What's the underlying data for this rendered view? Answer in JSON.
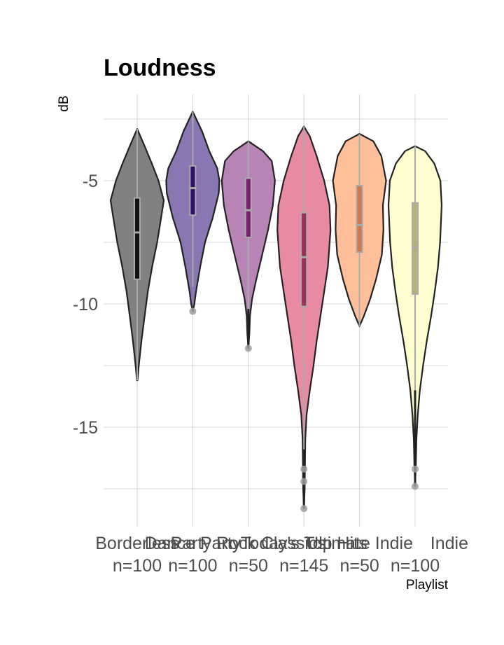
{
  "chart_data": {
    "type": "violin",
    "title": "Loudness",
    "ylabel": "dB",
    "xlabel": "Playlist",
    "ylim": [
      -19.1,
      -1.5
    ],
    "yticks": [
      -5,
      -10,
      -15
    ],
    "ytick_labels": [
      "-5",
      "-10",
      "-15"
    ],
    "grid": true,
    "legend": "none",
    "outline_color": "#222222",
    "box_color": "#aaaaaa",
    "series": [
      {
        "name": "Borderless",
        "n_label": "n=100",
        "fill": "#808080",
        "median_color": "#111111",
        "alpha_fill": "#7d7d7d",
        "min": -13.1,
        "max": -2.9,
        "q1": -9.0,
        "median": -7.1,
        "q3": -5.7,
        "whisker_low": -13.1,
        "whisker_high": -2.9,
        "outliers": [],
        "density": [
          [
            -13.1,
            0.01
          ],
          [
            -12.5,
            0.06
          ],
          [
            -11.5,
            0.16
          ],
          [
            -10.5,
            0.28
          ],
          [
            -9.5,
            0.4
          ],
          [
            -8.5,
            0.56
          ],
          [
            -7.5,
            0.75
          ],
          [
            -6.5,
            0.9
          ],
          [
            -5.8,
            1.0
          ],
          [
            -5.0,
            0.8
          ],
          [
            -4.3,
            0.55
          ],
          [
            -3.6,
            0.28
          ],
          [
            -2.9,
            0.0
          ]
        ]
      },
      {
        "name": "Dance Party",
        "n_label": "n=100",
        "fill": "#8a76b0",
        "median_color": "#2e0f6b",
        "min": -10.3,
        "max": -2.2,
        "q1": -6.4,
        "median": -5.3,
        "q3": -4.4,
        "whisker_low": -9.3,
        "whisker_high": -2.2,
        "outliers": [
          -10.3
        ],
        "density": [
          [
            -10.3,
            0.0
          ],
          [
            -10.0,
            0.06
          ],
          [
            -9.5,
            0.12
          ],
          [
            -8.5,
            0.28
          ],
          [
            -7.5,
            0.46
          ],
          [
            -6.5,
            0.75
          ],
          [
            -5.5,
            0.98
          ],
          [
            -5.0,
            1.0
          ],
          [
            -4.5,
            0.92
          ],
          [
            -3.8,
            0.62
          ],
          [
            -3.0,
            0.35
          ],
          [
            -2.2,
            0.0
          ]
        ]
      },
      {
        "name": "Party Rock Classics",
        "n_label": "n=50",
        "fill": "#b884b6",
        "median_color": "#7a1f6b",
        "min": -11.8,
        "max": -3.4,
        "q1": -7.3,
        "median": -6.2,
        "q3": -4.9,
        "whisker_low": -10.2,
        "whisker_high": -3.4,
        "outliers": [
          -11.8
        ],
        "density": [
          [
            -11.8,
            0.0
          ],
          [
            -11.2,
            0.04
          ],
          [
            -10.5,
            0.06
          ],
          [
            -9.8,
            0.14
          ],
          [
            -9.0,
            0.3
          ],
          [
            -8.0,
            0.52
          ],
          [
            -7.0,
            0.74
          ],
          [
            -6.0,
            0.92
          ],
          [
            -5.0,
            1.0
          ],
          [
            -4.2,
            0.88
          ],
          [
            -3.8,
            0.55
          ],
          [
            -3.4,
            0.0
          ]
        ]
      },
      {
        "name": "Today's Top Hits",
        "n_label": "n=145",
        "fill": "#e98aa3",
        "median_color": "#9e2a5a",
        "min": -18.3,
        "max": -2.8,
        "q1": -10.1,
        "median": -8.1,
        "q3": -6.3,
        "whisker_low": -15.9,
        "whisker_high": -2.8,
        "outliers": [
          -16.7,
          -17.2,
          -18.3
        ],
        "density": [
          [
            -18.3,
            0.0
          ],
          [
            -17.5,
            0.03
          ],
          [
            -16.5,
            0.04
          ],
          [
            -15.5,
            0.05
          ],
          [
            -14.5,
            0.1
          ],
          [
            -13.5,
            0.22
          ],
          [
            -12.5,
            0.36
          ],
          [
            -11.5,
            0.48
          ],
          [
            -10.5,
            0.62
          ],
          [
            -9.5,
            0.76
          ],
          [
            -8.5,
            0.9
          ],
          [
            -7.0,
            1.0
          ],
          [
            -6.0,
            0.96
          ],
          [
            -5.0,
            0.76
          ],
          [
            -4.0,
            0.48
          ],
          [
            -3.2,
            0.22
          ],
          [
            -2.8,
            0.0
          ]
        ]
      },
      {
        "name": "Ultimate Indie",
        "n_label": "n=50",
        "fill": "#ffbf9a",
        "median_color": "#d0784a",
        "min": -10.9,
        "max": -3.1,
        "q1": -7.9,
        "median": -6.8,
        "q3": -5.2,
        "whisker_low": -10.9,
        "whisker_high": -3.1,
        "outliers": [],
        "density": [
          [
            -10.9,
            0.0
          ],
          [
            -10.5,
            0.16
          ],
          [
            -9.8,
            0.4
          ],
          [
            -9.0,
            0.62
          ],
          [
            -8.0,
            0.84
          ],
          [
            -7.0,
            0.9
          ],
          [
            -6.0,
            0.88
          ],
          [
            -5.0,
            1.0
          ],
          [
            -4.0,
            0.82
          ],
          [
            -3.4,
            0.52
          ],
          [
            -3.1,
            0.0
          ]
        ]
      },
      {
        "name": "",
        "n_label": "n=100",
        "fill": "#fdfdcf",
        "median_color": "#b3b37a",
        "min": -17.4,
        "max": -3.6,
        "q1": -9.6,
        "median": -7.7,
        "q3": -5.9,
        "whisker_low": -13.5,
        "whisker_high": -3.6,
        "outliers": [
          -16.7,
          -17.4
        ],
        "density": [
          [
            -17.4,
            0.0
          ],
          [
            -16.5,
            0.03
          ],
          [
            -15.5,
            0.05
          ],
          [
            -14.5,
            0.1
          ],
          [
            -13.5,
            0.18
          ],
          [
            -12.5,
            0.3
          ],
          [
            -11.5,
            0.44
          ],
          [
            -10.5,
            0.6
          ],
          [
            -9.5,
            0.74
          ],
          [
            -8.5,
            0.86
          ],
          [
            -7.5,
            0.94
          ],
          [
            -6.0,
            1.0
          ],
          [
            -5.0,
            0.95
          ],
          [
            -4.3,
            0.72
          ],
          [
            -3.8,
            0.38
          ],
          [
            -3.6,
            0.0
          ]
        ]
      }
    ]
  }
}
